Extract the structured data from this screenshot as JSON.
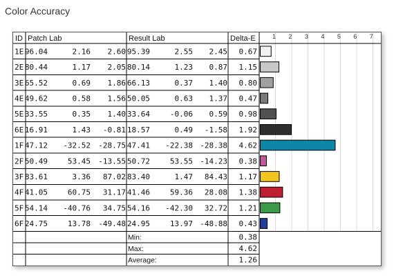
{
  "page": {
    "title": "Color Accuracy"
  },
  "table": {
    "headers": {
      "id": "ID",
      "patch": "Patch Lab",
      "result": "Result Lab",
      "delta": "Delta-E"
    },
    "rows": [
      {
        "id": "1E",
        "patch": [
          "96.04",
          "2.16",
          "2.60"
        ],
        "result": [
          "95.39",
          "2.55",
          "2.45"
        ],
        "delta": "0.67",
        "color": "#f2f2f2"
      },
      {
        "id": "2E",
        "patch": [
          "80.44",
          "1.17",
          "2.05"
        ],
        "result": [
          "80.14",
          "1.23",
          "0.87"
        ],
        "delta": "1.15",
        "color": "#c8c8c8"
      },
      {
        "id": "3E",
        "patch": [
          "65.52",
          "0.69",
          "1.86"
        ],
        "result": [
          "66.13",
          "0.37",
          "1.40"
        ],
        "delta": "0.80",
        "color": "#a0a0a0"
      },
      {
        "id": "4E",
        "patch": [
          "49.62",
          "0.58",
          "1.56"
        ],
        "result": [
          "50.05",
          "0.63",
          "1.37"
        ],
        "delta": "0.47",
        "color": "#7a7a7a"
      },
      {
        "id": "5E",
        "patch": [
          "33.55",
          "0.35",
          "1.40"
        ],
        "result": [
          "33.64",
          "-0.06",
          "0.59"
        ],
        "delta": "0.98",
        "color": "#515151"
      },
      {
        "id": "6E",
        "patch": [
          "16.91",
          "1.43",
          "-0.81"
        ],
        "result": [
          "18.57",
          "0.49",
          "-1.58"
        ],
        "delta": "1.92",
        "color": "#2e2e2e"
      },
      {
        "id": "1F",
        "patch": [
          "47.12",
          "-32.52",
          "-28.75"
        ],
        "result": [
          "47.41",
          "-22.38",
          "-28.38"
        ],
        "delta": "4.62",
        "color": "#0e86a6"
      },
      {
        "id": "2F",
        "patch": [
          "50.49",
          "53.45",
          "-13.55"
        ],
        "result": [
          "50.72",
          "53.55",
          "-14.23"
        ],
        "delta": "0.38",
        "color": "#c4589a"
      },
      {
        "id": "3F",
        "patch": [
          "83.61",
          "3.36",
          "87.02"
        ],
        "result": [
          "83.40",
          "1.47",
          "84.43"
        ],
        "delta": "1.17",
        "color": "#f3c61f"
      },
      {
        "id": "4F",
        "patch": [
          "41.05",
          "60.75",
          "31.17"
        ],
        "result": [
          "41.46",
          "59.36",
          "28.08"
        ],
        "delta": "1.38",
        "color": "#be1e32"
      },
      {
        "id": "5F",
        "patch": [
          "54.14",
          "-40.76",
          "34.75"
        ],
        "result": [
          "54.16",
          "-42.30",
          "32.72"
        ],
        "delta": "1.21",
        "color": "#3d9a48"
      },
      {
        "id": "6F",
        "patch": [
          "24.75",
          "13.78",
          "-49.48"
        ],
        "result": [
          "24.95",
          "13.97",
          "-48.88"
        ],
        "delta": "0.43",
        "color": "#1b3f9a"
      }
    ],
    "summary": [
      {
        "label": "Min:",
        "value": "0.38"
      },
      {
        "label": "Max:",
        "value": "4.62"
      },
      {
        "label": "Average:",
        "value": "1.26"
      }
    ]
  },
  "chart_data": {
    "type": "bar",
    "orientation": "horizontal",
    "categories": [
      "1E",
      "2E",
      "3E",
      "4E",
      "5E",
      "6E",
      "1F",
      "2F",
      "3F",
      "4F",
      "5F",
      "6F"
    ],
    "values": [
      0.67,
      1.15,
      0.8,
      0.47,
      0.98,
      1.92,
      4.62,
      0.38,
      1.17,
      1.38,
      1.21,
      0.43
    ],
    "tick_labels": [
      "1",
      "2",
      "3",
      "4",
      "5",
      "6",
      "7"
    ],
    "xlim": [
      0,
      7.5
    ],
    "grid": true
  }
}
